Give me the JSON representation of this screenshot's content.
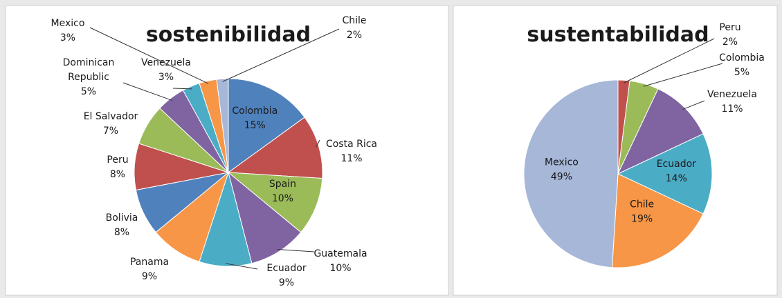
{
  "chart_data": [
    {
      "type": "pie",
      "title": "sostenibilidad",
      "unit": "%",
      "slices": [
        {
          "label": "Colombia",
          "value": 15,
          "color": "#4f81bd"
        },
        {
          "label": "Costa Rica",
          "value": 11,
          "color": "#c0504d"
        },
        {
          "label": "Spain",
          "value": 10,
          "color": "#9bbb59"
        },
        {
          "label": "Guatemala",
          "value": 10,
          "color": "#8064a2"
        },
        {
          "label": "Ecuador",
          "value": 9,
          "color": "#4bacc6"
        },
        {
          "label": "Panama",
          "value": 9,
          "color": "#f79646"
        },
        {
          "label": "Bolivia",
          "value": 8,
          "color": "#4f81bd"
        },
        {
          "label": "Peru",
          "value": 8,
          "color": "#c0504d"
        },
        {
          "label": "El Salvador",
          "value": 7,
          "color": "#9bbb59"
        },
        {
          "label": "Dominican Republic",
          "value": 5,
          "color": "#8064a2"
        },
        {
          "label": "Venezuela",
          "value": 3,
          "color": "#4bacc6"
        },
        {
          "label": "Mexico",
          "value": 3,
          "color": "#f79646"
        },
        {
          "label": "Chile",
          "value": 2,
          "color": "#a6b7d8"
        }
      ]
    },
    {
      "type": "pie",
      "title": "sustentabilidad",
      "unit": "%",
      "slices": [
        {
          "label": "Peru",
          "value": 2,
          "color": "#c0504d"
        },
        {
          "label": "Colombia",
          "value": 5,
          "color": "#9bbb59"
        },
        {
          "label": "Venezuela",
          "value": 11,
          "color": "#8064a2"
        },
        {
          "label": "Ecuador",
          "value": 14,
          "color": "#4bacc6"
        },
        {
          "label": "Chile",
          "value": 19,
          "color": "#f79646"
        },
        {
          "label": "Mexico",
          "value": 49,
          "color": "#a6b7d8"
        }
      ]
    }
  ]
}
